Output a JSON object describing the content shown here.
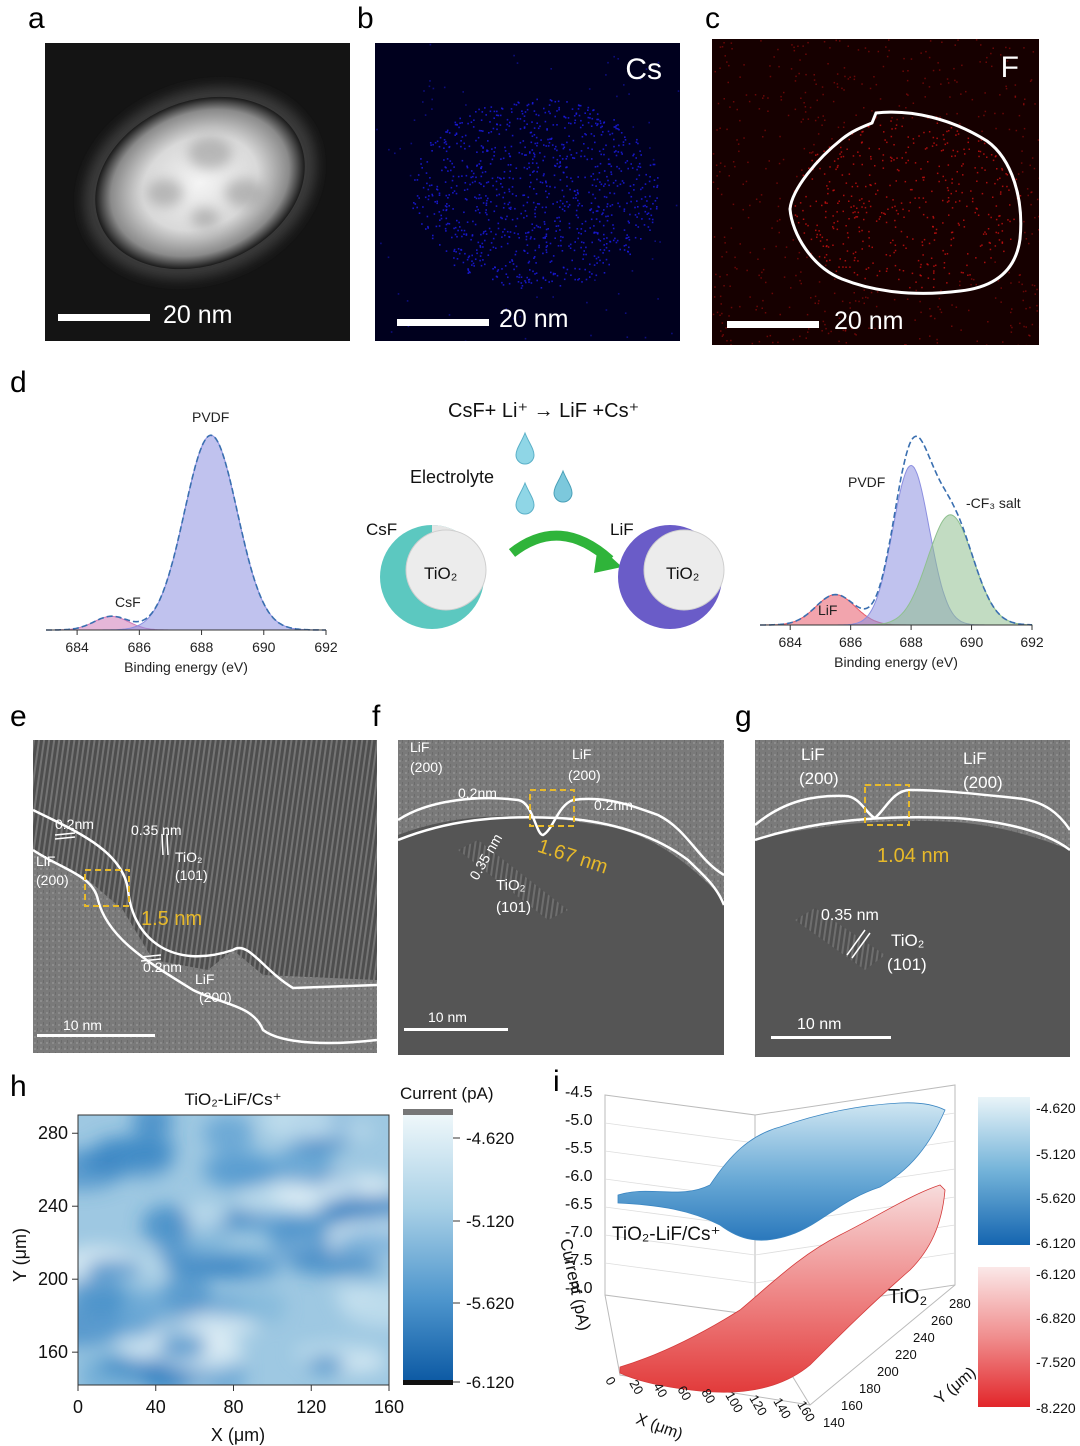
{
  "panels": {
    "a": {
      "letter": "a",
      "scale": "20 nm"
    },
    "b": {
      "letter": "b",
      "element": "Cs",
      "scale": "20 nm",
      "color": "#1a1ae0"
    },
    "c": {
      "letter": "c",
      "element": "F",
      "scale": "20 nm",
      "color": "#d01010"
    },
    "d": {
      "letter": "d",
      "reaction": "CsF+ Li⁺ → LiF +Cs⁺",
      "electrolyte": "Electrolyte",
      "left_particle": {
        "shell": "CsF",
        "core": "TiO₂",
        "shell_color": "#5cc8c0"
      },
      "right_particle": {
        "shell": "LiF",
        "core": "TiO₂",
        "shell_color": "#6a5cc8"
      },
      "xps_left": {
        "peaks": [
          "CsF",
          "PVDF"
        ]
      },
      "xps_right": {
        "peaks": [
          "LiF",
          "PVDF",
          "-CF₃ salt"
        ]
      }
    },
    "e": {
      "letter": "e",
      "labels": [
        "0.2nm",
        "0.35 nm",
        "TiO₂",
        "(101)",
        "LiF",
        "(200)",
        "1.5 nm",
        "0.2nm",
        "LiF",
        "(200)"
      ],
      "scale": "10 nm"
    },
    "f": {
      "letter": "f",
      "labels": [
        "LiF",
        "(200)",
        "LiF",
        "(200)",
        "0.2nm",
        "0.2nm",
        "0.35 nm",
        "1.67 nm",
        "TiO₂",
        "(101)"
      ],
      "scale": "10 nm"
    },
    "g": {
      "letter": "g",
      "labels": [
        "LiF",
        "(200)",
        "LiF",
        "(200)",
        "1.04 nm",
        "0.35 nm",
        "TiO₂",
        "(101)"
      ],
      "scale": "10 nm"
    },
    "h": {
      "letter": "h",
      "title": "TiO₂-LiF/Cs⁺",
      "colorbar_title": "Current (pA)",
      "colorbar_ticks": [
        "-4.620",
        "-5.120",
        "-5.620",
        "-6.120"
      ]
    },
    "i": {
      "letter": "i",
      "label_top": "TiO₂-LiF/Cs⁺",
      "label_bottom": "TiO₂",
      "zlabel": "Current (pA)",
      "xlabel": "X (μm)",
      "ylabel": "Y (μm)",
      "zticks": [
        "-4.5",
        "-5.0",
        "-5.5",
        "-6.0",
        "-6.5",
        "-7.0",
        "-7.5",
        "-8.0"
      ],
      "xticks": [
        "0",
        "20",
        "40",
        "60",
        "80",
        "100",
        "120",
        "140",
        "160"
      ],
      "yticks": [
        "140",
        "160",
        "180",
        "200",
        "220",
        "240",
        "260",
        "280"
      ],
      "cbar_blue": [
        "-4.620",
        "-5.120",
        "-5.620",
        "-6.120"
      ],
      "cbar_red": [
        "-6.120",
        "-6.820",
        "-7.520",
        "-8.220"
      ]
    }
  },
  "chart_data": [
    {
      "type": "area",
      "xlabel": "Binding energy (eV)",
      "xlim": [
        683,
        692
      ],
      "x_ticks": [
        684,
        686,
        688,
        690,
        692
      ],
      "series": [
        {
          "name": "CsF",
          "center": 685.1,
          "height": 0.07,
          "width": 0.55,
          "color": "#d07ab8"
        },
        {
          "name": "PVDF",
          "center": 688.3,
          "height": 1.0,
          "width": 0.85,
          "color": "#8c8fe0"
        }
      ]
    },
    {
      "type": "area",
      "xlabel": "Binding energy (eV)",
      "xlim": [
        683,
        692
      ],
      "x_ticks": [
        684,
        686,
        688,
        690,
        692
      ],
      "series": [
        {
          "name": "LiF",
          "center": 685.5,
          "height": 0.16,
          "width": 0.65,
          "color": "#e85a6a"
        },
        {
          "name": "PVDF",
          "center": 688.0,
          "height": 0.84,
          "width": 0.6,
          "color": "#8c8fe0"
        },
        {
          "name": "-CF₃ salt",
          "center": 689.3,
          "height": 0.58,
          "width": 0.75,
          "color": "#8fc08f"
        }
      ]
    },
    {
      "type": "heatmap",
      "title": "TiO₂-LiF/Cs⁺",
      "xlabel": "X (μm)",
      "ylabel": "Y (μm)",
      "xlim": [
        0,
        160
      ],
      "ylim": [
        142,
        290
      ],
      "x_ticks": [
        0,
        40,
        80,
        120,
        160
      ],
      "y_ticks": [
        160,
        200,
        240,
        280
      ],
      "zlim": [
        -6.12,
        -4.62
      ]
    }
  ]
}
